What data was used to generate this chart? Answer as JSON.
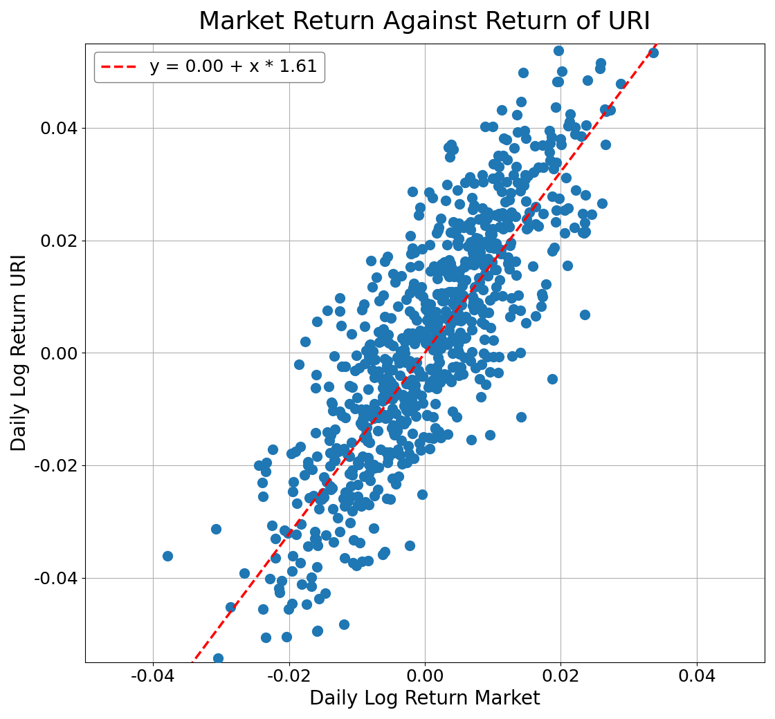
{
  "title": "Market Return Against Return of URI",
  "xlabel": "Daily Log Return Market",
  "ylabel": "Daily Log Return URI",
  "legend_label": "y = 0.00 + x * 1.61",
  "intercept": 0.0,
  "slope": 1.61,
  "xlim": [
    -0.05,
    0.05
  ],
  "ylim": [
    -0.055,
    0.055
  ],
  "xticks": [
    -0.04,
    -0.02,
    0.0,
    0.02,
    0.04
  ],
  "yticks": [
    -0.04,
    -0.02,
    0.0,
    0.02,
    0.04
  ],
  "scatter_color": "#1f77b4",
  "line_color": "#ff0000",
  "marker_size": 100,
  "n_points": 750,
  "seed": 42,
  "market_std": 0.012,
  "idio_std": 0.012,
  "title_fontsize": 26,
  "label_fontsize": 20,
  "tick_fontsize": 18,
  "legend_fontsize": 18,
  "background_color": "#ffffff",
  "grid_color": "#b0b0b0",
  "figwidth": 11.2,
  "figheight": 10.4
}
